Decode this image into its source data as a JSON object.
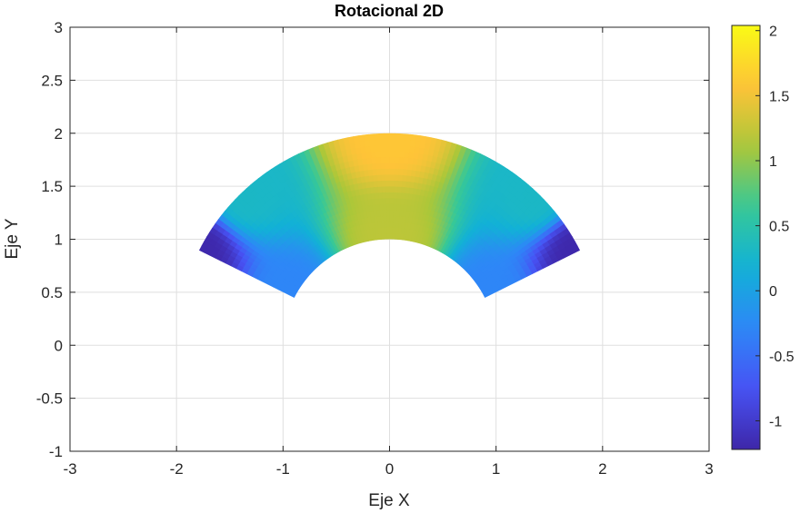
{
  "chart_data": {
    "type": "heatmap",
    "title": "Rotacional 2D",
    "xlabel": "Eje X",
    "ylabel": "Eje Y",
    "xlim": [
      -3,
      3
    ],
    "ylim": [
      -1,
      3
    ],
    "xticks": [
      -3,
      -2,
      -1,
      0,
      1,
      2,
      3
    ],
    "yticks": [
      -1,
      -0.5,
      0,
      0.5,
      1,
      1.5,
      2,
      2.5,
      3
    ],
    "xtick_labels": [
      "-3",
      "-2",
      "-1",
      "0",
      "1",
      "2",
      "3"
    ],
    "ytick_labels": [
      "-1",
      "-0.5",
      "0",
      "0.5",
      "1",
      "1.5",
      "2",
      "2.5",
      "3"
    ],
    "grid": true,
    "domain": {
      "shape": "annular-sector",
      "r_inner": 1,
      "r_outer": 2,
      "theta_deg": [
        26.6,
        153.4
      ]
    },
    "colorbar": {
      "limits": [
        -1.22,
        2.04
      ],
      "ticks": [
        -1,
        -0.5,
        0,
        0.5,
        1,
        1.5,
        2
      ],
      "tick_labels": [
        "-1",
        "-0.5",
        "0",
        "0.5",
        "1",
        "1.5",
        "2"
      ],
      "colormap": "parula"
    },
    "samples": [
      {
        "x": 0,
        "y": 2,
        "value": 1.6
      },
      {
        "x": 0,
        "y": 1,
        "value": 1.2
      },
      {
        "x": -1.35,
        "y": 1.4,
        "value": 0.3
      },
      {
        "x": 1.35,
        "y": 1.4,
        "value": 0.3
      },
      {
        "x": -1.8,
        "y": 0.9,
        "value": -1.2
      },
      {
        "x": 1.78,
        "y": 0.89,
        "value": -1.2
      },
      {
        "x": -0.9,
        "y": 0.45,
        "value": -0.3
      },
      {
        "x": 0.9,
        "y": 0.45,
        "value": -0.3
      }
    ]
  }
}
